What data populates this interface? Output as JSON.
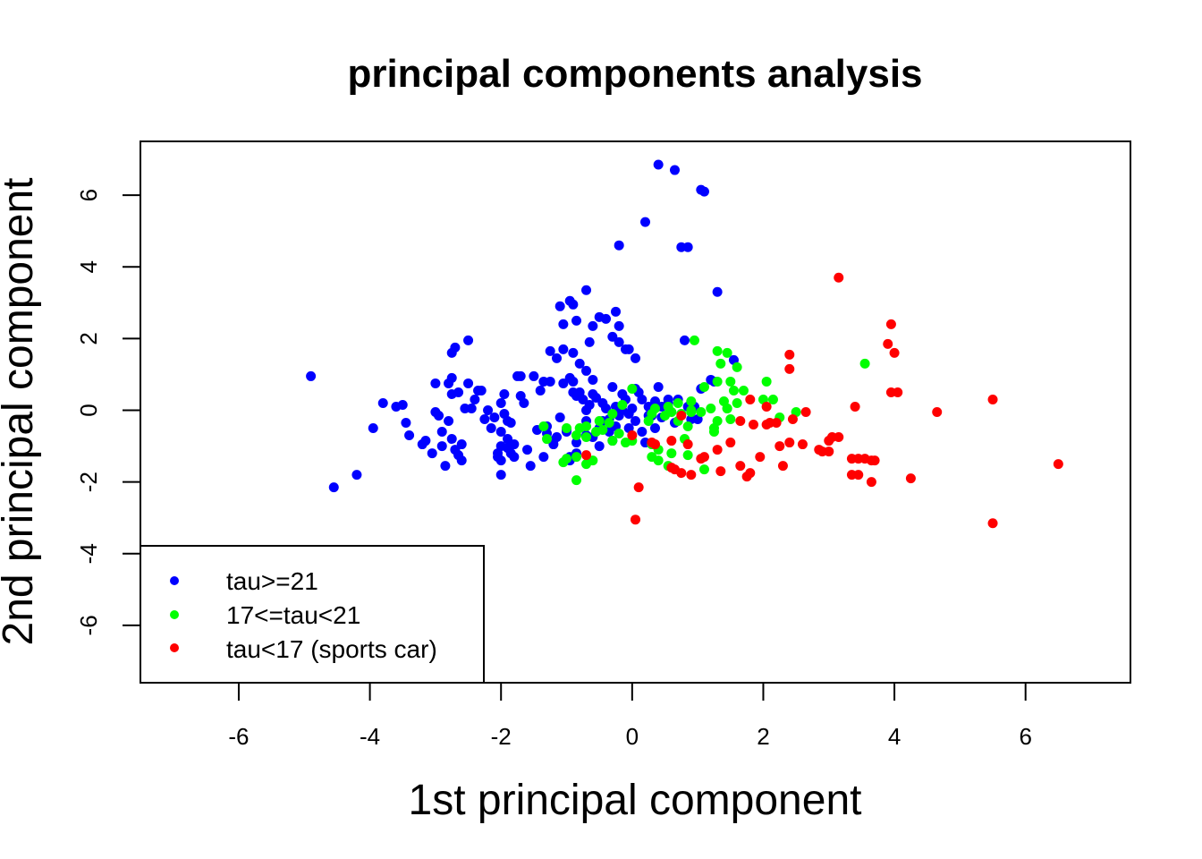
{
  "chart_data": {
    "type": "scatter",
    "title": "principal components analysis",
    "xlabel": "1st principal component",
    "ylabel": "2nd principal component",
    "xlim": [
      -7.5,
      7.6
    ],
    "ylim": [
      -7.6,
      7.5
    ],
    "xticks": [
      -6,
      -4,
      -2,
      0,
      2,
      4,
      6
    ],
    "yticks": [
      -6,
      -4,
      -2,
      0,
      2,
      4,
      6
    ],
    "grid": false,
    "legend_position": "bottom-left",
    "series": [
      {
        "name": "tau>=21",
        "color": "#0000ff",
        "points": [
          [
            -4.9,
            0.95
          ],
          [
            -4.55,
            -2.15
          ],
          [
            -4.2,
            -1.8
          ],
          [
            -3.95,
            -0.5
          ],
          [
            -3.8,
            0.2
          ],
          [
            -3.6,
            0.1
          ],
          [
            -3.5,
            0.15
          ],
          [
            -3.45,
            -0.35
          ],
          [
            -3.4,
            -0.7
          ],
          [
            -3.2,
            -0.95
          ],
          [
            -3.15,
            -0.85
          ],
          [
            -3.05,
            -1.2
          ],
          [
            -3.0,
            0.75
          ],
          [
            -3.0,
            -0.05
          ],
          [
            -2.95,
            -0.15
          ],
          [
            -2.9,
            -0.6
          ],
          [
            -2.9,
            -1.0
          ],
          [
            -2.85,
            -1.55
          ],
          [
            -2.8,
            -0.3
          ],
          [
            -2.8,
            0.75
          ],
          [
            -2.75,
            0.9
          ],
          [
            -2.75,
            0.45
          ],
          [
            -2.75,
            -0.8
          ],
          [
            -2.7,
            -1.1
          ],
          [
            -2.75,
            1.6
          ],
          [
            -2.7,
            1.75
          ],
          [
            -2.65,
            0.5
          ],
          [
            -2.65,
            -1.25
          ],
          [
            -2.6,
            -1.4
          ],
          [
            -2.6,
            -0.95
          ],
          [
            -2.55,
            0.05
          ],
          [
            -2.5,
            1.95
          ],
          [
            -2.5,
            0.75
          ],
          [
            -2.45,
            0.05
          ],
          [
            -2.4,
            0.3
          ],
          [
            -2.35,
            0.55
          ],
          [
            -2.3,
            0.55
          ],
          [
            -2.25,
            -0.25
          ],
          [
            -2.2,
            0.0
          ],
          [
            -2.15,
            -0.5
          ],
          [
            -2.1,
            -0.2
          ],
          [
            -2.05,
            -1.2
          ],
          [
            -2.05,
            -1.3
          ],
          [
            -2.0,
            -0.6
          ],
          [
            -2.0,
            -1.0
          ],
          [
            -2.0,
            -1.4
          ],
          [
            -2.0,
            0.2
          ],
          [
            -1.95,
            0.45
          ],
          [
            -1.95,
            -0.1
          ],
          [
            -1.9,
            -0.3
          ],
          [
            -1.9,
            -0.8
          ],
          [
            -1.9,
            -1.05
          ],
          [
            -1.85,
            -1.2
          ],
          [
            -1.85,
            -0.35
          ],
          [
            -1.8,
            -0.95
          ],
          [
            -1.8,
            -1.3
          ],
          [
            -2.0,
            -1.8
          ],
          [
            -1.75,
            0.95
          ],
          [
            -1.7,
            0.95
          ],
          [
            -1.7,
            0.4
          ],
          [
            -1.65,
            0.2
          ],
          [
            -1.6,
            -1.1
          ],
          [
            -1.55,
            -1.55
          ],
          [
            -1.5,
            0.95
          ],
          [
            -1.45,
            -0.55
          ],
          [
            -1.4,
            0.55
          ],
          [
            -1.35,
            0.8
          ],
          [
            -1.3,
            -0.65
          ],
          [
            -1.25,
            1.65
          ],
          [
            -1.2,
            -0.85
          ],
          [
            -1.15,
            1.45
          ],
          [
            -1.1,
            -0.2
          ],
          [
            -1.05,
            0.75
          ],
          [
            -1.0,
            -0.55
          ],
          [
            -1.0,
            -0.6
          ],
          [
            -0.95,
            -1.3
          ],
          [
            -0.9,
            0.8
          ],
          [
            -0.9,
            0.5
          ],
          [
            -0.85,
            0.4
          ],
          [
            -0.85,
            -0.9
          ],
          [
            -0.85,
            -1.2
          ],
          [
            -0.8,
            0.5
          ],
          [
            -0.75,
            0.3
          ],
          [
            -0.7,
            0.0
          ],
          [
            -0.7,
            -0.7
          ],
          [
            -0.65,
            0.15
          ],
          [
            -0.6,
            0.45
          ],
          [
            -0.55,
            0.35
          ],
          [
            -0.5,
            -0.5
          ],
          [
            -0.5,
            -1.0
          ],
          [
            -0.45,
            0.2
          ],
          [
            -0.4,
            0.05
          ],
          [
            -0.35,
            -0.25
          ],
          [
            -0.3,
            -0.85
          ],
          [
            -0.3,
            0.65
          ],
          [
            -0.25,
            -0.45
          ],
          [
            -0.2,
            -0.15
          ],
          [
            -0.15,
            0.0
          ],
          [
            -0.1,
            0.3
          ],
          [
            -0.05,
            -0.5
          ],
          [
            0.0,
            0.05
          ],
          [
            0.05,
            -0.3
          ],
          [
            0.1,
            0.5
          ],
          [
            0.15,
            -0.6
          ],
          [
            0.2,
            -0.9
          ],
          [
            0.25,
            0.1
          ],
          [
            0.3,
            -0.15
          ],
          [
            0.35,
            0.25
          ],
          [
            0.4,
            0.65
          ],
          [
            0.45,
            -0.2
          ],
          [
            0.55,
            0.2
          ],
          [
            0.65,
            -0.35
          ],
          [
            0.7,
            0.3
          ],
          [
            0.85,
            0.1
          ],
          [
            1.0,
            -0.25
          ],
          [
            -1.3,
            -0.45
          ],
          [
            -1.25,
            0.8
          ],
          [
            -1.2,
            -0.95
          ],
          [
            -1.35,
            -1.3
          ],
          [
            -1.15,
            -0.75
          ],
          [
            -0.95,
            -1.4
          ],
          [
            -0.7,
            -0.3
          ],
          [
            -0.6,
            -0.75
          ],
          [
            -0.45,
            -0.3
          ],
          [
            -0.35,
            -0.6
          ],
          [
            -0.25,
            0.1
          ],
          [
            -0.15,
            0.45
          ],
          [
            -0.05,
            -0.1
          ],
          [
            0.15,
            0.3
          ],
          [
            0.35,
            -0.5
          ],
          [
            -1.1,
            2.9
          ],
          [
            -1.05,
            2.4
          ],
          [
            -0.95,
            3.05
          ],
          [
            -0.9,
            2.95
          ],
          [
            -0.85,
            2.5
          ],
          [
            -0.7,
            3.35
          ],
          [
            -0.65,
            1.9
          ],
          [
            -0.6,
            2.35
          ],
          [
            -0.5,
            2.6
          ],
          [
            -0.4,
            2.55
          ],
          [
            -0.3,
            2.05
          ],
          [
            -0.25,
            2.75
          ],
          [
            -0.2,
            2.35
          ],
          [
            -0.2,
            1.9
          ],
          [
            -0.1,
            1.7
          ],
          [
            -0.05,
            1.7
          ],
          [
            0.05,
            1.45
          ],
          [
            -0.8,
            1.3
          ],
          [
            -0.7,
            1.1
          ],
          [
            -0.9,
            1.6
          ],
          [
            -1.05,
            1.7
          ],
          [
            -0.95,
            0.9
          ],
          [
            -0.6,
            0.85
          ],
          [
            0.4,
            6.85
          ],
          [
            0.65,
            6.7
          ],
          [
            1.05,
            6.15
          ],
          [
            1.1,
            6.1
          ],
          [
            0.2,
            5.25
          ],
          [
            -0.2,
            4.6
          ],
          [
            0.75,
            4.55
          ],
          [
            0.85,
            4.55
          ],
          [
            1.3,
            3.3
          ],
          [
            0.8,
            1.95
          ],
          [
            1.55,
            1.4
          ],
          [
            1.2,
            0.85
          ],
          [
            1.25,
            0.8
          ],
          [
            0.55,
            0.3
          ],
          [
            0.9,
            -0.25
          ],
          [
            0.95,
            0.1
          ],
          [
            1.05,
            0.6
          ],
          [
            0.05,
            0.6
          ],
          [
            0.25,
            -0.15
          ],
          [
            0.45,
            0.1
          ]
        ]
      },
      {
        "name": "17<=tau<21",
        "color": "#00ff00",
        "points": [
          [
            0.95,
            1.95
          ],
          [
            1.3,
            1.65
          ],
          [
            1.45,
            1.6
          ],
          [
            1.35,
            1.3
          ],
          [
            1.6,
            1.2
          ],
          [
            3.55,
            1.3
          ],
          [
            2.05,
            0.8
          ],
          [
            1.5,
            0.8
          ],
          [
            1.3,
            0.8
          ],
          [
            1.1,
            0.65
          ],
          [
            1.55,
            0.55
          ],
          [
            1.7,
            0.55
          ],
          [
            2.0,
            0.3
          ],
          [
            2.15,
            0.3
          ],
          [
            2.25,
            -0.2
          ],
          [
            2.5,
            -0.05
          ],
          [
            1.45,
            0.05
          ],
          [
            1.2,
            0.05
          ],
          [
            0.9,
            0.25
          ],
          [
            0.7,
            0.2
          ],
          [
            0.55,
            0.1
          ],
          [
            0.35,
            0.05
          ],
          [
            0.3,
            -0.1
          ],
          [
            0.5,
            -0.15
          ],
          [
            0.7,
            -0.3
          ],
          [
            0.85,
            -0.45
          ],
          [
            1.25,
            -0.6
          ],
          [
            1.3,
            -0.3
          ],
          [
            1.5,
            -0.25
          ],
          [
            1.05,
            -0.05
          ],
          [
            0.9,
            -0.05
          ],
          [
            0.0,
            0.6
          ],
          [
            -0.15,
            0.15
          ],
          [
            -0.3,
            -0.1
          ],
          [
            -0.45,
            -0.55
          ],
          [
            -0.55,
            -0.6
          ],
          [
            -0.7,
            -0.45
          ],
          [
            -0.8,
            -0.5
          ],
          [
            -1.0,
            -0.5
          ],
          [
            -1.35,
            -0.45
          ],
          [
            -1.3,
            -0.8
          ],
          [
            -0.85,
            -0.7
          ],
          [
            -0.7,
            -0.75
          ],
          [
            -0.3,
            -0.85
          ],
          [
            -0.1,
            -0.9
          ],
          [
            0.0,
            -0.85
          ],
          [
            0.3,
            -0.95
          ],
          [
            0.4,
            -1.1
          ],
          [
            0.6,
            -1.2
          ],
          [
            0.85,
            -1.25
          ],
          [
            0.3,
            -1.3
          ],
          [
            0.4,
            -1.4
          ],
          [
            0.55,
            -1.55
          ],
          [
            -0.7,
            -1.5
          ],
          [
            -0.6,
            -1.4
          ],
          [
            -0.85,
            -1.3
          ],
          [
            -1.0,
            -1.35
          ],
          [
            -1.05,
            -1.45
          ],
          [
            -0.85,
            -1.95
          ],
          [
            1.1,
            -1.65
          ],
          [
            0.8,
            -0.8
          ],
          [
            1.25,
            -0.5
          ],
          [
            0.9,
            0.0
          ],
          [
            1.4,
            0.25
          ],
          [
            0.25,
            -0.3
          ],
          [
            -0.2,
            -0.65
          ],
          [
            -0.35,
            -0.35
          ],
          [
            -0.5,
            -0.3
          ],
          [
            1.45,
            0.05
          ],
          [
            1.6,
            0.2
          ],
          [
            0.6,
            -0.05
          ],
          [
            0.75,
            -0.1
          ]
        ]
      },
      {
        "name": "tau<17 (sports car)",
        "color": "#ff0000",
        "points": [
          [
            3.15,
            3.7
          ],
          [
            3.95,
            2.4
          ],
          [
            3.9,
            1.85
          ],
          [
            4.0,
            1.6
          ],
          [
            2.4,
            1.55
          ],
          [
            2.4,
            1.15
          ],
          [
            3.95,
            0.5
          ],
          [
            4.05,
            0.5
          ],
          [
            5.5,
            0.3
          ],
          [
            3.4,
            0.1
          ],
          [
            4.65,
            -0.05
          ],
          [
            2.05,
            0.1
          ],
          [
            2.1,
            -0.35
          ],
          [
            2.2,
            -0.35
          ],
          [
            2.45,
            -0.25
          ],
          [
            2.65,
            -0.05
          ],
          [
            2.05,
            -0.4
          ],
          [
            1.85,
            -0.4
          ],
          [
            1.65,
            -0.3
          ],
          [
            1.8,
            0.3
          ],
          [
            0.75,
            -0.15
          ],
          [
            3.05,
            -0.75
          ],
          [
            3.15,
            -0.75
          ],
          [
            3.0,
            -0.85
          ],
          [
            2.85,
            -1.1
          ],
          [
            2.9,
            -1.15
          ],
          [
            3.0,
            -1.15
          ],
          [
            2.6,
            -0.95
          ],
          [
            2.4,
            -0.9
          ],
          [
            2.25,
            -1.0
          ],
          [
            1.5,
            -0.9
          ],
          [
            1.3,
            -1.1
          ],
          [
            1.1,
            -1.3
          ],
          [
            1.05,
            -1.35
          ],
          [
            0.85,
            -0.95
          ],
          [
            0.6,
            -0.85
          ],
          [
            0.35,
            -0.95
          ],
          [
            0.3,
            -0.9
          ],
          [
            0.0,
            -0.7
          ],
          [
            -0.7,
            -1.25
          ],
          [
            1.65,
            -1.55
          ],
          [
            1.75,
            -1.85
          ],
          [
            1.8,
            -1.75
          ],
          [
            1.95,
            -1.3
          ],
          [
            2.3,
            -1.55
          ],
          [
            3.35,
            -1.35
          ],
          [
            3.45,
            -1.35
          ],
          [
            3.55,
            -1.35
          ],
          [
            3.65,
            -1.4
          ],
          [
            3.7,
            -1.4
          ],
          [
            3.35,
            -1.8
          ],
          [
            3.45,
            -1.8
          ],
          [
            3.65,
            -2.0
          ],
          [
            4.25,
            -1.9
          ],
          [
            6.5,
            -1.5
          ],
          [
            5.5,
            -3.15
          ],
          [
            0.1,
            -2.15
          ],
          [
            0.05,
            -3.05
          ],
          [
            0.65,
            -1.65
          ],
          [
            0.75,
            -1.75
          ],
          [
            0.9,
            -1.8
          ],
          [
            1.35,
            -1.7
          ],
          [
            0.6,
            -1.6
          ]
        ]
      }
    ]
  }
}
